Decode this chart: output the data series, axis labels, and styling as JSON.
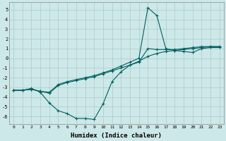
{
  "xlabel": "Humidex (Indice chaleur)",
  "bg_color": "#cde8e8",
  "grid_color": "#b0c8c8",
  "line_color": "#006060",
  "xlim": [
    -0.5,
    23.5
  ],
  "ylim": [
    -6.8,
    5.8
  ],
  "xticks": [
    0,
    1,
    2,
    3,
    4,
    5,
    6,
    7,
    8,
    9,
    10,
    11,
    12,
    13,
    14,
    15,
    16,
    17,
    18,
    19,
    20,
    21,
    22,
    23
  ],
  "yticks": [
    -6,
    -5,
    -4,
    -3,
    -2,
    -1,
    0,
    1,
    2,
    3,
    4,
    5
  ],
  "line1_x": [
    0,
    1,
    2,
    3,
    4,
    5,
    6,
    7,
    8,
    9,
    10,
    11,
    12,
    13,
    14,
    15,
    16,
    17,
    18,
    19,
    20,
    21,
    22,
    23
  ],
  "line1_y": [
    -3.3,
    -3.3,
    -3.1,
    -3.5,
    -4.6,
    -5.4,
    -5.7,
    -6.2,
    -6.2,
    -6.3,
    -4.7,
    -2.4,
    -1.4,
    -0.7,
    -0.4,
    1.0,
    0.9,
    0.9,
    0.9,
    1.0,
    1.1,
    1.2,
    1.2,
    1.2
  ],
  "line2_x": [
    0,
    1,
    2,
    3,
    4,
    5,
    6,
    7,
    8,
    9,
    10,
    11,
    12,
    13,
    14,
    15,
    16,
    17,
    18,
    19,
    20,
    21,
    22,
    23
  ],
  "line2_y": [
    -3.3,
    -3.3,
    -3.2,
    -3.4,
    -3.6,
    -2.8,
    -2.5,
    -2.3,
    -2.1,
    -1.9,
    -1.6,
    -1.3,
    -1.0,
    -0.7,
    -0.3,
    0.2,
    0.5,
    0.7,
    0.8,
    0.9,
    1.0,
    1.1,
    1.2,
    1.2
  ],
  "line3_x": [
    0,
    1,
    2,
    3,
    4,
    5,
    6,
    7,
    8,
    9,
    10,
    11,
    12,
    13,
    14,
    15,
    16,
    17,
    18,
    19,
    20,
    21,
    22,
    23
  ],
  "line3_y": [
    -3.3,
    -3.3,
    -3.2,
    -3.4,
    -3.5,
    -2.7,
    -2.4,
    -2.2,
    -2.0,
    -1.8,
    -1.5,
    -1.2,
    -0.8,
    -0.4,
    0.0,
    5.2,
    4.4,
    1.0,
    0.8,
    0.7,
    0.6,
    1.0,
    1.1,
    1.1
  ]
}
